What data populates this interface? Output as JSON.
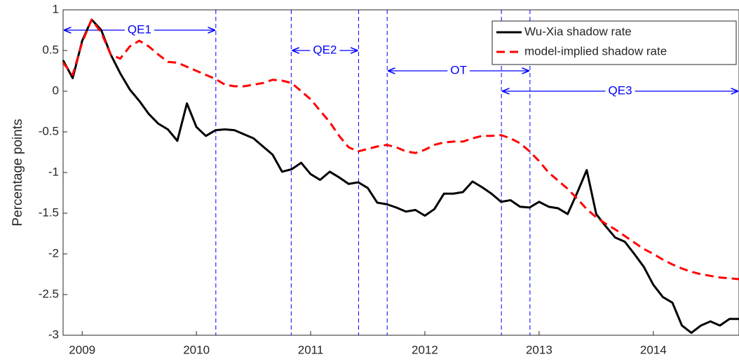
{
  "chart_data": {
    "type": "line",
    "ylabel": "Percentage points",
    "x": [
      2008.833,
      2008.917,
      2009,
      2009.083,
      2009.167,
      2009.25,
      2009.333,
      2009.417,
      2009.5,
      2009.583,
      2009.667,
      2009.75,
      2009.833,
      2009.917,
      2010,
      2010.083,
      2010.167,
      2010.25,
      2010.333,
      2010.417,
      2010.5,
      2010.583,
      2010.667,
      2010.75,
      2010.833,
      2010.917,
      2011,
      2011.083,
      2011.167,
      2011.25,
      2011.333,
      2011.417,
      2011.5,
      2011.583,
      2011.667,
      2011.75,
      2011.833,
      2011.917,
      2012,
      2012.083,
      2012.167,
      2012.25,
      2012.333,
      2012.417,
      2012.5,
      2012.583,
      2012.667,
      2012.75,
      2012.833,
      2012.917,
      2013,
      2013.083,
      2013.167,
      2013.25,
      2013.333,
      2013.417,
      2013.5,
      2013.583,
      2013.667,
      2013.75,
      2013.833,
      2013.917,
      2014,
      2014.083,
      2014.167,
      2014.25,
      2014.333,
      2014.417,
      2014.5,
      2014.583,
      2014.667,
      2014.75
    ],
    "series": [
      {
        "name": "Wu-Xia shadow rate",
        "color": "#000000",
        "dash": false,
        "values": [
          0.38,
          0.16,
          0.62,
          0.88,
          0.75,
          0.45,
          0.22,
          0.02,
          -0.12,
          -0.28,
          -0.4,
          -0.47,
          -0.61,
          -0.15,
          -0.44,
          -0.55,
          -0.48,
          -0.47,
          -0.48,
          -0.53,
          -0.58,
          -0.68,
          -0.78,
          -0.99,
          -0.96,
          -0.88,
          -1.02,
          -1.09,
          -0.99,
          -1.06,
          -1.14,
          -1.12,
          -1.19,
          -1.37,
          -1.39,
          -1.43,
          -1.48,
          -1.46,
          -1.53,
          -1.45,
          -1.26,
          -1.26,
          -1.24,
          -1.11,
          -1.18,
          -1.26,
          -1.36,
          -1.34,
          -1.42,
          -1.43,
          -1.36,
          -1.42,
          -1.44,
          -1.51,
          -1.25,
          -0.97,
          -1.51,
          -1.66,
          -1.8,
          -1.85,
          -2.0,
          -2.16,
          -2.38,
          -2.53,
          -2.6,
          -2.88,
          -2.97,
          -2.88,
          -2.83,
          -2.88,
          -2.8,
          -2.8
        ]
      },
      {
        "name": "model-implied shadow rate",
        "color": "#ff0000",
        "dash": true,
        "values": [
          0.35,
          0.2,
          0.6,
          0.88,
          0.72,
          0.45,
          0.4,
          0.55,
          0.62,
          0.55,
          0.45,
          0.36,
          0.35,
          0.3,
          0.25,
          0.2,
          0.15,
          0.08,
          0.06,
          0.06,
          0.08,
          0.1,
          0.14,
          0.13,
          0.1,
          0.0,
          -0.1,
          -0.24,
          -0.38,
          -0.55,
          -0.69,
          -0.74,
          -0.71,
          -0.68,
          -0.66,
          -0.69,
          -0.74,
          -0.76,
          -0.72,
          -0.66,
          -0.63,
          -0.62,
          -0.62,
          -0.58,
          -0.55,
          -0.55,
          -0.54,
          -0.58,
          -0.64,
          -0.74,
          -0.86,
          -1.0,
          -1.1,
          -1.2,
          -1.32,
          -1.45,
          -1.55,
          -1.63,
          -1.7,
          -1.78,
          -1.86,
          -1.94,
          -2.0,
          -2.07,
          -2.13,
          -2.18,
          -2.22,
          -2.25,
          -2.27,
          -2.29,
          -2.3,
          -2.31
        ]
      }
    ],
    "xlim": [
      2008.833,
      2014.75
    ],
    "xticks": [
      2009,
      2010,
      2011,
      2012,
      2013,
      2014
    ],
    "ylim": [
      -3,
      1
    ],
    "yticks": [
      -3,
      -2.5,
      -2,
      -1.5,
      -1,
      -0.5,
      0,
      0.5,
      1
    ],
    "grid": false,
    "legend": "top-right",
    "vlines": [
      2010.17,
      2010.83,
      2011.42,
      2011.67,
      2012.67,
      2012.92
    ],
    "vline_color": "#0000ff",
    "annotations": [
      {
        "label": "QE1",
        "start": 2008.833,
        "end": 2010.17,
        "y": 0.75
      },
      {
        "label": "QE2",
        "start": 2010.83,
        "end": 2011.42,
        "y": 0.5
      },
      {
        "label": "OT",
        "start": 2011.67,
        "end": 2012.92,
        "y": 0.25
      },
      {
        "label": "QE3",
        "start": 2012.67,
        "end": 2014.75,
        "y": 0.0
      }
    ]
  }
}
